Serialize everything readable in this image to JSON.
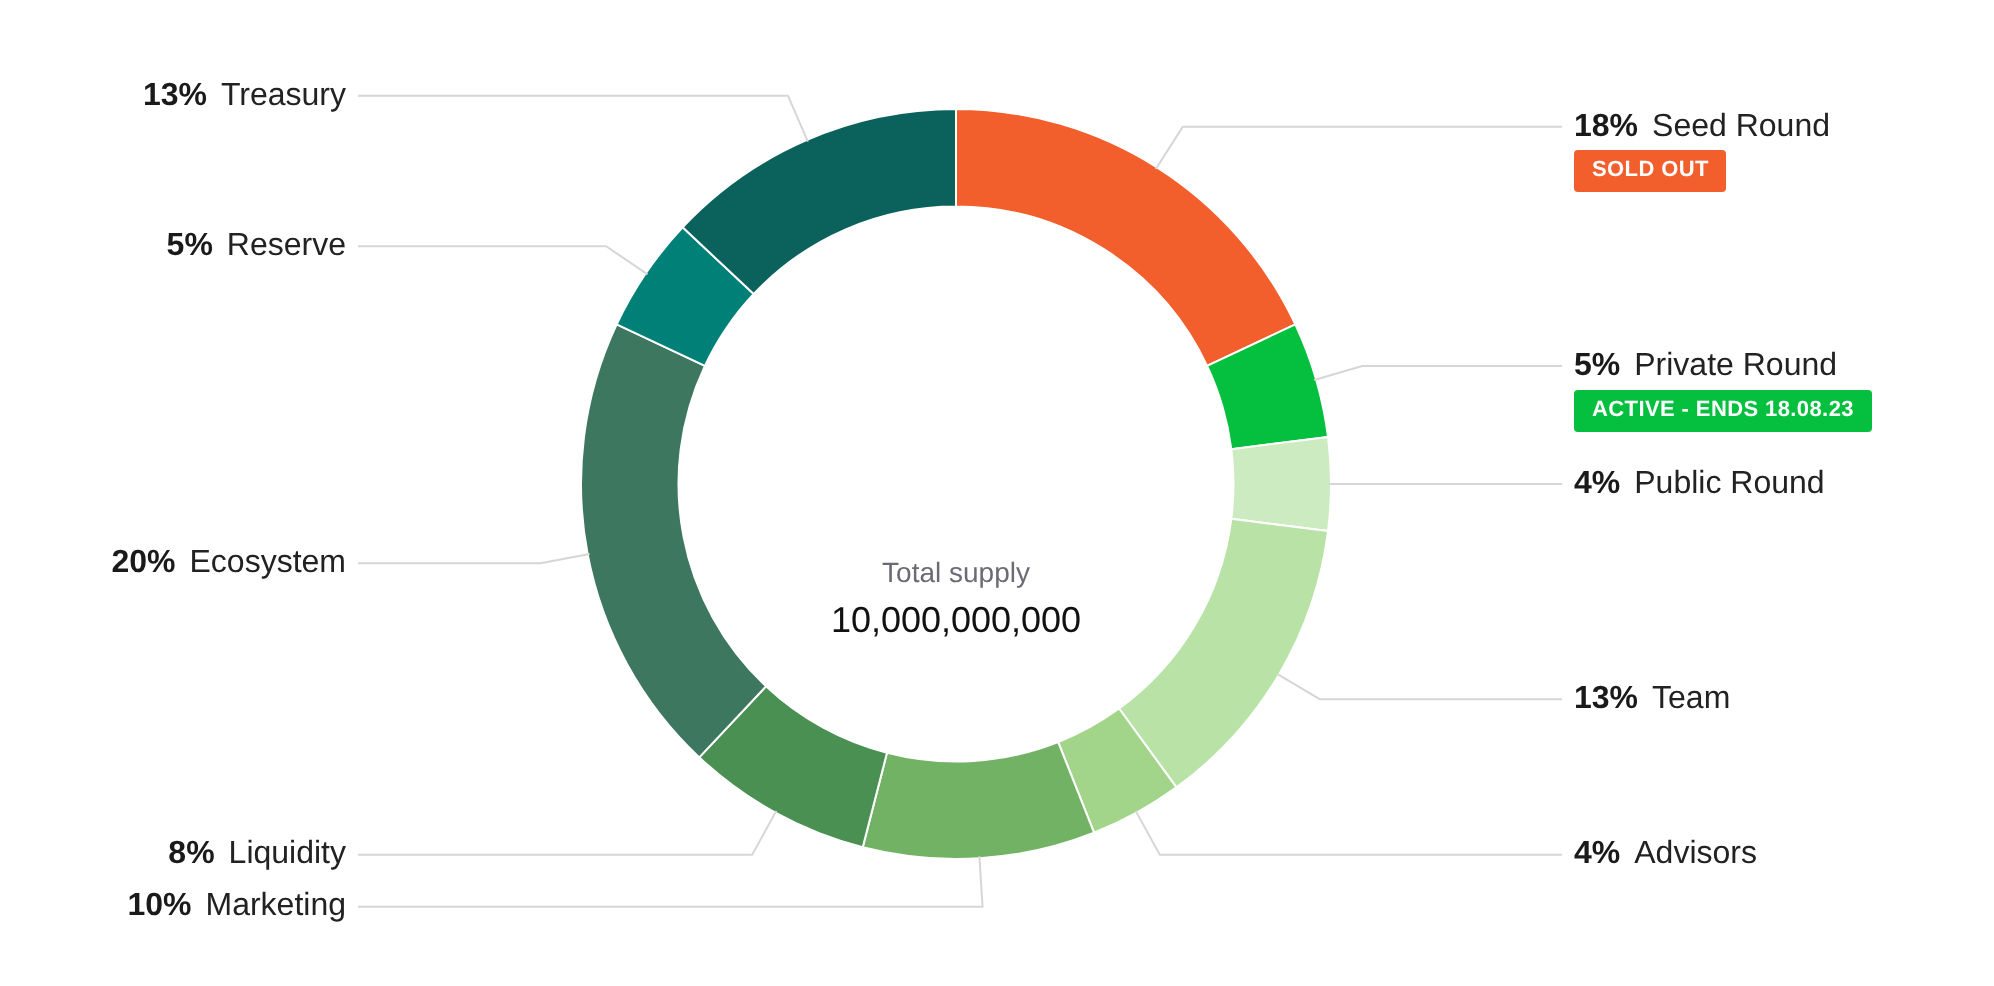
{
  "chart_data": {
    "type": "donut",
    "categories": [
      "Seed Round",
      "Private Round",
      "Public Round",
      "Team",
      "Advisors",
      "Marketing",
      "Liquidity",
      "Ecosystem",
      "Reserve",
      "Treasury"
    ],
    "values": [
      18,
      5,
      4,
      13,
      4,
      10,
      8,
      20,
      5,
      13
    ],
    "value_labels": [
      "18%",
      "5%",
      "4%",
      "13%",
      "4%",
      "10%",
      "8%",
      "20%",
      "5%",
      "13%"
    ],
    "colors": [
      "#f25f2c",
      "#05bf3e",
      "#cdebc0",
      "#b9e3a6",
      "#a2d58a",
      "#72b264",
      "#4a9052",
      "#3d7760",
      "#008077",
      "#0b625c"
    ],
    "annotations": [
      "Total supply",
      "10,000,000,000",
      "SOLD OUT",
      "ACTIVE - ENDS 18.08.23"
    ]
  }
}
